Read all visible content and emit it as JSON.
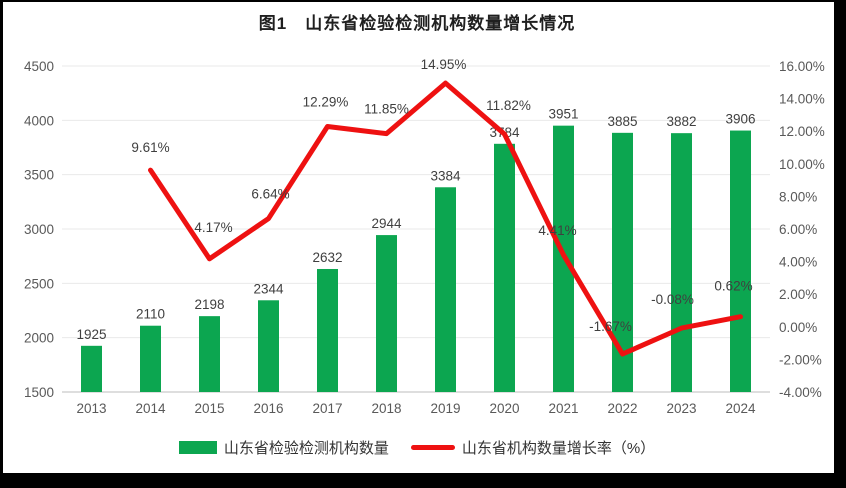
{
  "page": {
    "title": "图1　山东省检验检测机构数量增长情况"
  },
  "colors": {
    "bar_green": "#0CA650",
    "line_red": "#EE1111",
    "grid": "#E9E9E9",
    "axis_line": "#C9C9C9",
    "tick_text": "#595959",
    "data_label": "#3F3F3F"
  },
  "legend": {
    "items": [
      {
        "label": "山东省检验检测机构数量",
        "type": "bar",
        "color": "#0CA650"
      },
      {
        "label": "山东省机构数量增长率（%）",
        "type": "line",
        "color": "#EE1111"
      }
    ]
  },
  "chart_data": {
    "type": "bar",
    "subtype": "bar-line-combo",
    "title": "图1　山东省检验检测机构数量增长情况",
    "categories": [
      "2013",
      "2014",
      "2015",
      "2016",
      "2017",
      "2018",
      "2019",
      "2020",
      "2021",
      "2022",
      "2023",
      "2024"
    ],
    "series": [
      {
        "name": "山东省检验检测机构数量",
        "type": "bar",
        "axis": "left",
        "color": "#0CA650",
        "values": [
          1925,
          2110,
          2198,
          2344,
          2632,
          2944,
          3384,
          3784,
          3951,
          3885,
          3882,
          3906
        ],
        "labels": [
          "1925",
          "2110",
          "2198",
          "2344",
          "2632",
          "2944",
          "3384",
          "3784",
          "3951",
          "3885",
          "3882",
          "3906"
        ]
      },
      {
        "name": "山东省机构数量增长率（%）",
        "type": "line",
        "axis": "right",
        "color": "#EE1111",
        "values": [
          null,
          9.61,
          4.17,
          6.64,
          12.29,
          11.85,
          14.95,
          11.82,
          4.41,
          -1.67,
          -0.08,
          0.62
        ],
        "labels": [
          null,
          "9.61%",
          "4.17%",
          "6.64%",
          "12.29%",
          "11.85%",
          "14.95%",
          "11.82%",
          "4.41%",
          "-1.67%",
          "-0.08%",
          "0.62%"
        ]
      }
    ],
    "left_axis": {
      "min": 1500,
      "max": 4500,
      "step": 500,
      "ticks": [
        "1500",
        "2000",
        "2500",
        "3000",
        "3500",
        "4000",
        "4500"
      ]
    },
    "right_axis": {
      "min": -4,
      "max": 16,
      "step": 2,
      "ticks": [
        "-4.00%",
        "-2.00%",
        "0.00%",
        "2.00%",
        "4.00%",
        "6.00%",
        "8.00%",
        "10.00%",
        "12.00%",
        "14.00%",
        "16.00%"
      ]
    },
    "grid": true,
    "legend_position": "bottom",
    "line_label_offsets": [
      null,
      [
        0,
        -18
      ],
      [
        4,
        -27
      ],
      [
        2,
        -20
      ],
      [
        -2,
        -20
      ],
      [
        0,
        -20
      ],
      [
        -2,
        -14
      ],
      [
        4,
        -24
      ],
      [
        -6,
        -20
      ],
      [
        -12,
        -23
      ],
      [
        -9,
        -24
      ],
      [
        -7,
        -26
      ]
    ]
  }
}
